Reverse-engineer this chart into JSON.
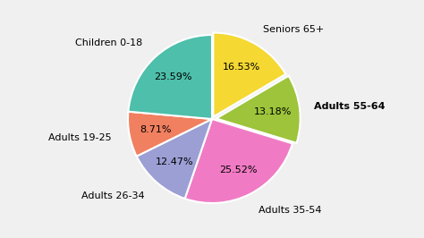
{
  "labels": [
    "Seniors 65+",
    "Adults 55-64",
    "Adults 35-54",
    "Adults 26-34",
    "Adults 19-25",
    "Children 0-18"
  ],
  "values": [
    16.53,
    13.18,
    25.52,
    12.47,
    8.71,
    23.59
  ],
  "colors": [
    "#f5d832",
    "#9dc43a",
    "#f07bc4",
    "#9b9fd4",
    "#f08060",
    "#4dbfaa"
  ],
  "explode": [
    0.03,
    0.05,
    0.0,
    0.0,
    0.0,
    0.0
  ],
  "label_fontsize": 8,
  "pct_fontsize": 8,
  "bold_label": "Adults 55-64",
  "startangle": 90,
  "background_color": "#f0f0f0"
}
